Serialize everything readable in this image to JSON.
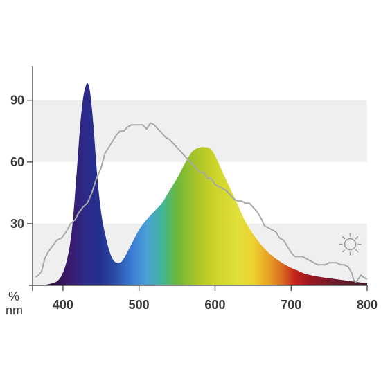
{
  "chart_data": {
    "type": "area",
    "x_unit_label": "nm",
    "y_unit_label": "%",
    "xlim": [
      360,
      800
    ],
    "ylim": [
      0,
      100
    ],
    "x_ticks": [
      400,
      500,
      600,
      700,
      800
    ],
    "y_ticks": [
      30,
      60,
      90
    ],
    "grid": "alternating horizontal bands",
    "series": [
      {
        "style": "spectrum-colored filled area",
        "x": [
          360,
          380,
          395,
          405,
          412,
          418,
          422,
          426,
          430,
          433,
          436,
          440,
          444,
          448,
          452,
          456,
          460,
          465,
          470,
          475,
          480,
          490,
          500,
          510,
          520,
          530,
          540,
          550,
          560,
          570,
          580,
          590,
          595,
          600,
          610,
          620,
          630,
          640,
          650,
          660,
          670,
          680,
          690,
          700,
          710,
          720,
          740,
          760,
          780,
          800
        ],
        "y": [
          0,
          0.5,
          3,
          12,
          28,
          55,
          75,
          90,
          97,
          98,
          93,
          78,
          58,
          42,
          31,
          24,
          18,
          13,
          11,
          11,
          13,
          20,
          27,
          32,
          36,
          40,
          46,
          52,
          59,
          65,
          67,
          67,
          66,
          63,
          55,
          47,
          39,
          31,
          25,
          20,
          16,
          13,
          10.5,
          8.5,
          7,
          5.5,
          4,
          3,
          2,
          1
        ]
      },
      {
        "style": "gray reference line",
        "x": [
          364,
          368,
          372,
          376,
          380,
          386,
          392,
          398,
          404,
          410,
          416,
          420,
          426,
          432,
          438,
          444,
          450,
          455,
          460,
          465,
          470,
          475,
          480,
          485,
          490,
          495,
          500,
          505,
          510,
          515,
          520,
          525,
          530,
          535,
          540,
          545,
          550,
          555,
          560,
          565,
          570,
          575,
          580,
          585,
          590,
          595,
          600,
          605,
          610,
          615,
          620,
          625,
          630,
          635,
          640,
          645,
          650,
          655,
          660,
          665,
          670,
          675,
          680,
          685,
          690,
          695,
          700,
          705,
          710,
          715,
          720,
          725,
          730,
          735,
          740,
          745,
          750,
          755,
          760,
          765,
          770,
          775,
          780,
          782,
          785,
          788,
          792,
          795,
          800
        ],
        "y": [
          4,
          5,
          7,
          13,
          16,
          19,
          22,
          23,
          26,
          30,
          32,
          35,
          38,
          40,
          45,
          52,
          57,
          64,
          67,
          70,
          73,
          75,
          75,
          77,
          78,
          78,
          78,
          78,
          76,
          79,
          78,
          76,
          74,
          72,
          71,
          69,
          67,
          65,
          63,
          61,
          59,
          57,
          55,
          55,
          52,
          52,
          49,
          48,
          47,
          46,
          44,
          42,
          41,
          41,
          40,
          40,
          38,
          36,
          33,
          29,
          28,
          27,
          26,
          23,
          22,
          19,
          16,
          14,
          14,
          14,
          13,
          12,
          11,
          10,
          10,
          10,
          11,
          11,
          11,
          10,
          10,
          9,
          6,
          3,
          1.5,
          3,
          5,
          4,
          3
        ]
      }
    ],
    "annotations": [
      {
        "type": "icon",
        "name": "sun-icon",
        "near_x": 785,
        "near_y": 20
      }
    ]
  },
  "colors": {
    "band": "#efefef",
    "axis": "#555555",
    "reference_line": "#a8a8a8",
    "tick_text": "#3a3a3a",
    "sun_icon": "#9a9a9a"
  }
}
